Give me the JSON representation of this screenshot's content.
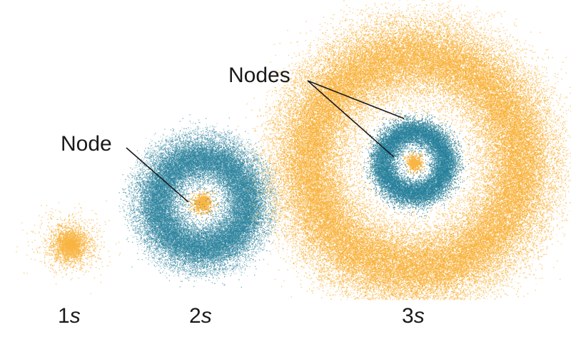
{
  "orbitals": [
    {
      "number": "1",
      "letter": "s",
      "node_count": 0
    },
    {
      "number": "2",
      "letter": "s",
      "node_count": 1
    },
    {
      "number": "3",
      "letter": "s",
      "node_count": 2
    }
  ],
  "annotations": {
    "node": "Node",
    "nodes": "Nodes"
  },
  "colors": {
    "orange": "#f7a823",
    "teal": "#1e7a96",
    "text": "#1a1a1a",
    "background": "#ffffff"
  }
}
